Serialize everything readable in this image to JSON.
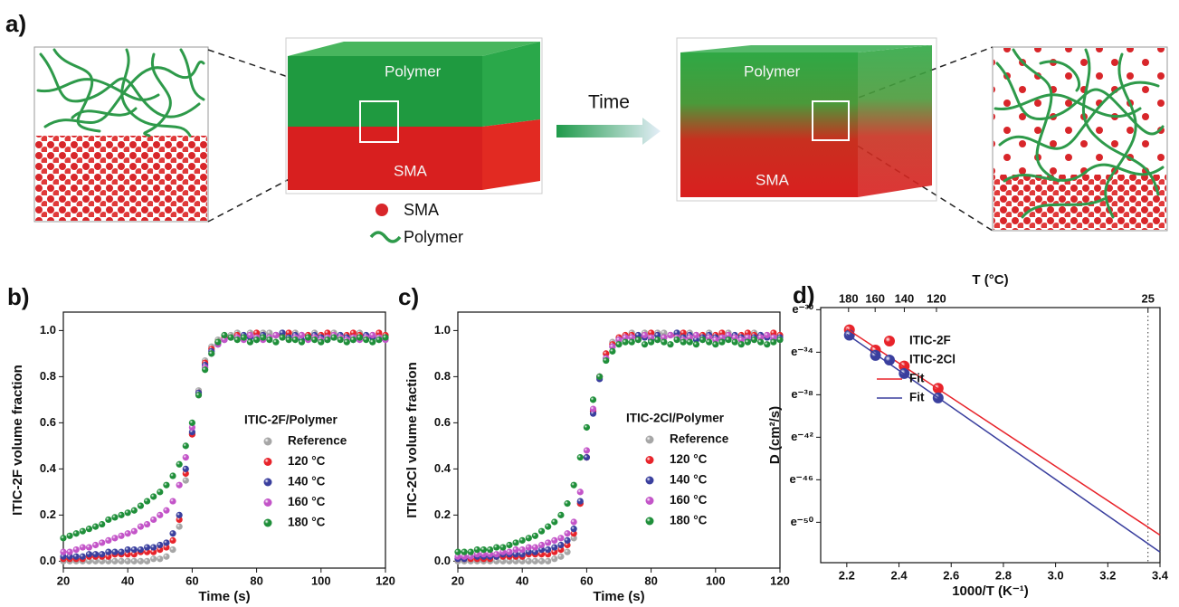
{
  "panel_a": {
    "label": "a)",
    "block_before": {
      "top": "Polymer",
      "bottom": "SMA"
    },
    "arrow": "Time",
    "block_after": {
      "top": "Polymer",
      "bottom": "SMA"
    },
    "legend": {
      "dot": "SMA",
      "line": "Polymer"
    }
  },
  "chart_data": [
    {
      "type": "scatter",
      "panel_label": "b)",
      "x_label": "Time (s)",
      "y_label": "ITIC-2F volume fraction",
      "legend_title": "ITIC-2F/Polymer",
      "xlim": [
        20,
        120
      ],
      "xticks": [
        20,
        40,
        60,
        80,
        100,
        120
      ],
      "ylim": [
        -0.03,
        1.08
      ],
      "yticks": [
        {
          "value": 0,
          "label": "0.0"
        },
        {
          "value": 0.2,
          "label": "0.2"
        },
        {
          "value": 0.4,
          "label": "0.4"
        },
        {
          "value": 0.6,
          "label": "0.6"
        },
        {
          "value": 0.8,
          "label": "0.8"
        },
        {
          "value": 1,
          "label": "1.0"
        }
      ],
      "x": [
        20,
        22,
        24,
        26,
        28,
        30,
        32,
        34,
        36,
        38,
        40,
        42,
        44,
        46,
        48,
        50,
        52,
        54,
        56,
        58,
        60,
        62,
        64,
        66,
        68,
        70,
        72,
        74,
        76,
        78,
        80,
        82,
        84,
        86,
        88,
        90,
        92,
        94,
        96,
        98,
        100,
        102,
        104,
        106,
        108,
        110,
        112,
        114,
        116,
        118,
        120
      ],
      "series": [
        {
          "name": "Reference",
          "color": "#a6a6a6",
          "values": [
            0,
            0,
            0,
            0,
            0,
            0,
            0,
            0,
            0,
            0,
            0,
            0,
            0,
            0,
            0.01,
            0.01,
            0.02,
            0.05,
            0.15,
            0.35,
            0.55,
            0.74,
            0.87,
            0.93,
            0.96,
            0.98,
            0.98,
            0.99,
            0.98,
            0.99,
            0.98,
            0.99,
            0.99,
            0.98,
            0.99,
            0.98,
            0.99,
            0.98,
            0.98,
            0.99,
            0.98,
            0.98,
            0.99,
            0.98,
            0.97,
            0.98,
            0.99,
            0.98,
            0.97,
            0.98,
            0.98
          ]
        },
        {
          "name": "120 °C",
          "color": "#e8232a",
          "values": [
            0.01,
            0.01,
            0.01,
            0.01,
            0.02,
            0.02,
            0.02,
            0.02,
            0.03,
            0.03,
            0.03,
            0.03,
            0.04,
            0.04,
            0.04,
            0.05,
            0.06,
            0.09,
            0.18,
            0.38,
            0.55,
            0.73,
            0.86,
            0.92,
            0.95,
            0.97,
            0.97,
            0.98,
            0.97,
            0.98,
            0.99,
            0.98,
            0.97,
            0.98,
            0.98,
            0.99,
            0.97,
            0.98,
            0.98,
            0.97,
            0.98,
            0.99,
            0.98,
            0.97,
            0.98,
            0.99,
            0.98,
            0.97,
            0.98,
            0.99,
            0.98
          ]
        },
        {
          "name": "140 °C",
          "color": "#3a3f9e",
          "values": [
            0.02,
            0.02,
            0.02,
            0.02,
            0.03,
            0.03,
            0.03,
            0.04,
            0.04,
            0.04,
            0.05,
            0.05,
            0.05,
            0.06,
            0.06,
            0.07,
            0.08,
            0.12,
            0.2,
            0.4,
            0.56,
            0.73,
            0.85,
            0.91,
            0.94,
            0.96,
            0.97,
            0.97,
            0.98,
            0.97,
            0.96,
            0.98,
            0.97,
            0.98,
            0.99,
            0.97,
            0.98,
            0.96,
            0.97,
            0.98,
            0.97,
            0.96,
            0.97,
            0.98,
            0.97,
            0.96,
            0.97,
            0.98,
            0.97,
            0.96,
            0.97
          ]
        },
        {
          "name": "160 °C",
          "color": "#c354c8",
          "values": [
            0.04,
            0.04,
            0.05,
            0.06,
            0.06,
            0.07,
            0.08,
            0.09,
            0.1,
            0.11,
            0.12,
            0.13,
            0.15,
            0.16,
            0.18,
            0.2,
            0.22,
            0.26,
            0.33,
            0.45,
            0.58,
            0.72,
            0.84,
            0.9,
            0.94,
            0.96,
            0.97,
            0.97,
            0.96,
            0.98,
            0.97,
            0.96,
            0.97,
            0.98,
            0.97,
            0.96,
            0.97,
            0.98,
            0.96,
            0.97,
            0.96,
            0.97,
            0.98,
            0.97,
            0.96,
            0.97,
            0.96,
            0.97,
            0.98,
            0.97,
            0.96
          ]
        },
        {
          "name": "180 °C",
          "color": "#1f8f3a",
          "values": [
            0.1,
            0.11,
            0.12,
            0.13,
            0.14,
            0.15,
            0.16,
            0.18,
            0.19,
            0.2,
            0.21,
            0.22,
            0.24,
            0.26,
            0.28,
            0.3,
            0.33,
            0.37,
            0.42,
            0.5,
            0.6,
            0.72,
            0.83,
            0.9,
            0.95,
            0.98,
            0.97,
            0.96,
            0.97,
            0.95,
            0.96,
            0.97,
            0.96,
            0.95,
            0.97,
            0.96,
            0.96,
            0.95,
            0.97,
            0.96,
            0.95,
            0.96,
            0.97,
            0.96,
            0.95,
            0.96,
            0.97,
            0.96,
            0.95,
            0.96,
            0.97
          ]
        }
      ]
    },
    {
      "type": "scatter",
      "panel_label": "c)",
      "x_label": "Time (s)",
      "y_label": "ITIC-2Cl volume fraction",
      "legend_title": "ITIC-2Cl/Polymer",
      "xlim": [
        20,
        120
      ],
      "xticks": [
        20,
        40,
        60,
        80,
        100,
        120
      ],
      "ylim": [
        -0.03,
        1.08
      ],
      "yticks": [
        {
          "value": 0,
          "label": "0.0"
        },
        {
          "value": 0.2,
          "label": "0.2"
        },
        {
          "value": 0.4,
          "label": "0.4"
        },
        {
          "value": 0.6,
          "label": "0.6"
        },
        {
          "value": 0.8,
          "label": "0.8"
        },
        {
          "value": 1,
          "label": "1.0"
        }
      ],
      "x": [
        20,
        22,
        24,
        26,
        28,
        30,
        32,
        34,
        36,
        38,
        40,
        42,
        44,
        46,
        48,
        50,
        52,
        54,
        56,
        58,
        60,
        62,
        64,
        66,
        68,
        70,
        72,
        74,
        76,
        78,
        80,
        82,
        84,
        86,
        88,
        90,
        92,
        94,
        96,
        98,
        100,
        102,
        104,
        106,
        108,
        110,
        112,
        114,
        116,
        118,
        120
      ],
      "series": [
        {
          "name": "Reference",
          "color": "#a6a6a6",
          "values": [
            0,
            0,
            0,
            0,
            0,
            0,
            0,
            0,
            0,
            0,
            0,
            0,
            0,
            0,
            0,
            0.01,
            0.02,
            0.04,
            0.1,
            0.25,
            0.45,
            0.65,
            0.8,
            0.9,
            0.95,
            0.97,
            0.98,
            0.99,
            0.98,
            0.99,
            0.98,
            0.99,
            0.99,
            0.98,
            0.99,
            0.98,
            0.99,
            0.98,
            0.98,
            0.99,
            0.98,
            0.98,
            0.99,
            0.98,
            0.97,
            0.98,
            0.99,
            0.98,
            0.97,
            0.98,
            0.98
          ]
        },
        {
          "name": "120 °C",
          "color": "#e8232a",
          "values": [
            0.01,
            0.01,
            0.01,
            0.01,
            0.01,
            0.01,
            0.02,
            0.02,
            0.02,
            0.02,
            0.02,
            0.03,
            0.03,
            0.03,
            0.03,
            0.04,
            0.05,
            0.07,
            0.12,
            0.25,
            0.45,
            0.65,
            0.8,
            0.9,
            0.94,
            0.97,
            0.98,
            0.98,
            0.97,
            0.98,
            0.99,
            0.98,
            0.97,
            0.98,
            0.98,
            0.99,
            0.97,
            0.98,
            0.98,
            0.97,
            0.98,
            0.99,
            0.98,
            0.97,
            0.98,
            0.99,
            0.98,
            0.97,
            0.98,
            0.99,
            0.98
          ]
        },
        {
          "name": "140 °C",
          "color": "#3a3f9e",
          "values": [
            0.01,
            0.01,
            0.02,
            0.02,
            0.02,
            0.02,
            0.02,
            0.03,
            0.03,
            0.03,
            0.03,
            0.04,
            0.04,
            0.05,
            0.05,
            0.06,
            0.07,
            0.09,
            0.14,
            0.26,
            0.45,
            0.64,
            0.79,
            0.88,
            0.93,
            0.96,
            0.97,
            0.97,
            0.98,
            0.97,
            0.96,
            0.98,
            0.97,
            0.98,
            0.99,
            0.97,
            0.98,
            0.96,
            0.97,
            0.98,
            0.97,
            0.96,
            0.97,
            0.98,
            0.97,
            0.96,
            0.97,
            0.98,
            0.97,
            0.96,
            0.97
          ]
        },
        {
          "name": "160 °C",
          "color": "#c354c8",
          "values": [
            0.02,
            0.02,
            0.02,
            0.03,
            0.03,
            0.03,
            0.03,
            0.04,
            0.04,
            0.05,
            0.05,
            0.06,
            0.06,
            0.07,
            0.08,
            0.09,
            0.1,
            0.12,
            0.17,
            0.3,
            0.48,
            0.66,
            0.8,
            0.88,
            0.93,
            0.96,
            0.97,
            0.97,
            0.96,
            0.98,
            0.97,
            0.96,
            0.97,
            0.98,
            0.97,
            0.96,
            0.97,
            0.98,
            0.96,
            0.97,
            0.96,
            0.97,
            0.98,
            0.97,
            0.96,
            0.97,
            0.96,
            0.97,
            0.98,
            0.97,
            0.96
          ]
        },
        {
          "name": "180 °C",
          "color": "#1f8f3a",
          "values": [
            0.04,
            0.04,
            0.04,
            0.05,
            0.05,
            0.05,
            0.06,
            0.06,
            0.07,
            0.08,
            0.09,
            0.1,
            0.11,
            0.13,
            0.15,
            0.17,
            0.2,
            0.25,
            0.33,
            0.45,
            0.58,
            0.7,
            0.8,
            0.87,
            0.91,
            0.94,
            0.95,
            0.95,
            0.96,
            0.94,
            0.95,
            0.96,
            0.95,
            0.94,
            0.96,
            0.95,
            0.95,
            0.94,
            0.96,
            0.95,
            0.94,
            0.95,
            0.96,
            0.95,
            0.94,
            0.95,
            0.96,
            0.95,
            0.94,
            0.95,
            0.96
          ]
        }
      ]
    },
    {
      "type": "scatter",
      "panel_label": "d)",
      "x_label": "1000/T (K⁻¹)",
      "y_label": "D (cm²/s)",
      "xlim": [
        2.1,
        3.4
      ],
      "xticks": [
        2.2,
        2.4,
        2.6,
        2.8,
        {
          "value": 3,
          "label": "3.0"
        },
        3.2,
        3.4
      ],
      "ylim": [
        -53.8,
        -29.8
      ],
      "yticks": [
        {
          "value": -30,
          "label": "e⁻³⁰"
        },
        {
          "value": -34,
          "label": "e⁻³⁴"
        },
        {
          "value": -38,
          "label": "e⁻³⁸"
        },
        {
          "value": -42,
          "label": "e⁻⁴²"
        },
        {
          "value": -46,
          "label": "e⁻⁴⁶"
        },
        {
          "value": -50,
          "label": "e⁻⁵⁰"
        }
      ],
      "top_axis": {
        "label": "T (°C)",
        "ticks": [
          180,
          160,
          140,
          120,
          25
        ],
        "vline": 25
      },
      "series": [
        {
          "name": "ITIC-2F",
          "color": "#e8232a",
          "mode": "markers",
          "x": [
            2.21,
            2.31,
            2.42,
            2.55
          ],
          "values": [
            -31.9,
            -33.8,
            -35.3,
            -37.4
          ]
        },
        {
          "name": "ITIC-2Cl",
          "color": "#3a3f9e",
          "mode": "markers",
          "x": [
            2.21,
            2.31,
            2.42,
            2.55
          ],
          "values": [
            -32.4,
            -34.3,
            -36.0,
            -38.3
          ]
        },
        {
          "name": "Fit",
          "color": "#e8232a",
          "mode": "line",
          "x": [
            2.2,
            3.4
          ],
          "values": [
            -31.8,
            -51.2
          ]
        },
        {
          "name": "Fit",
          "color": "#3a3f9e",
          "mode": "line",
          "x": [
            2.2,
            3.4
          ],
          "values": [
            -32.3,
            -52.8
          ]
        }
      ]
    }
  ]
}
